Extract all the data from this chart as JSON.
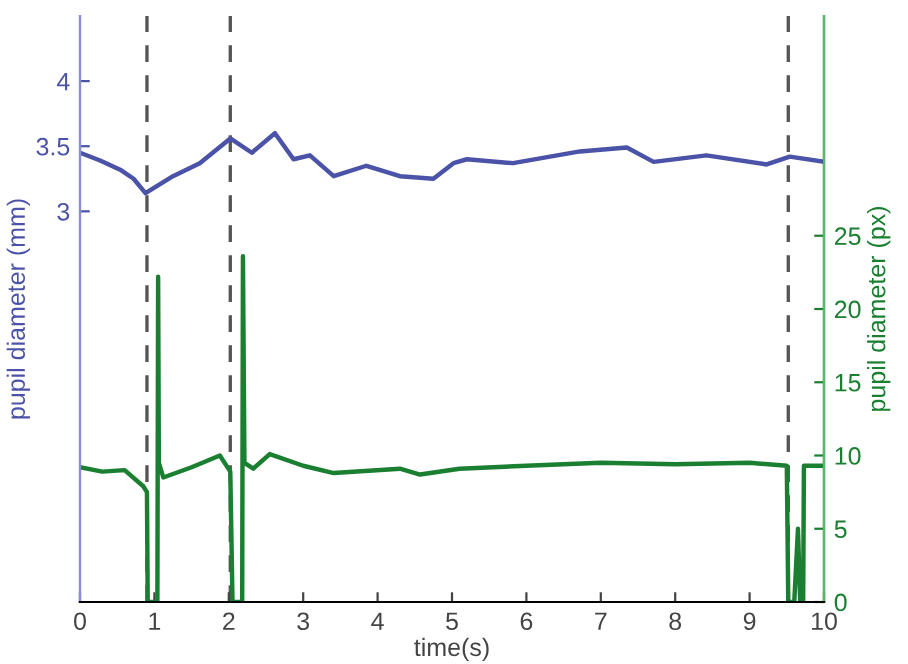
{
  "chart_data": {
    "type": "line",
    "xlabel": "time(s)",
    "ylabel": "pupil diameter (mm)",
    "y2label": "pupil diameter (px)",
    "xlim": [
      0,
      10
    ],
    "xticks": [
      0,
      1,
      2,
      3,
      4,
      5,
      6,
      7,
      8,
      9,
      10
    ],
    "ylim": [
      0,
      4.5
    ],
    "yticks": [
      3,
      3.5,
      4
    ],
    "y2lim": [
      0,
      40
    ],
    "y2ticks": [
      0,
      5,
      10,
      15,
      20,
      25
    ],
    "grid": false,
    "marker": "none",
    "line_style": "solid",
    "series": [
      {
        "color": "#4b53a8",
        "x": [
          0,
          0.27,
          0.54,
          0.72,
          0.88,
          1.25,
          1.61,
          2.02,
          2.31,
          2.62,
          2.87,
          3.09,
          3.41,
          3.85,
          4.3,
          4.75,
          5.02,
          5.2,
          5.82,
          6.72,
          7.35,
          7.71,
          8.42,
          9.23,
          9.54,
          10
        ],
        "values": [
          3.45,
          3.39,
          3.32,
          3.25,
          3.14,
          3.27,
          3.37,
          3.56,
          3.45,
          3.6,
          3.4,
          3.43,
          3.27,
          3.35,
          3.27,
          3.25,
          3.37,
          3.4,
          3.37,
          3.46,
          3.49,
          3.38,
          3.43,
          3.36,
          3.42,
          3.38
        ]
      },
      {
        "color": "#1b7f32",
        "axis": "y2",
        "x": [
          0,
          0.3,
          0.6,
          0.85,
          0.9,
          0.91,
          1.0,
          1.04,
          1.05,
          1.06,
          1.12,
          1.5,
          1.88,
          2.02,
          2.05,
          2.15,
          2.18,
          2.19,
          2.21,
          2.33,
          2.55,
          3.0,
          3.41,
          4.3,
          4.57,
          5.1,
          6.0,
          7.0,
          8.0,
          9.0,
          9.5,
          9.52,
          9.6,
          9.65,
          9.68,
          9.72,
          9.73,
          10
        ],
        "values": [
          9.2,
          8.9,
          9.0,
          7.9,
          7.5,
          0,
          0,
          0,
          22.2,
          9.5,
          8.5,
          9.2,
          10.0,
          8.9,
          0,
          0,
          0,
          23.6,
          9.5,
          9.1,
          10.1,
          9.3,
          8.8,
          9.1,
          8.7,
          9.1,
          9.3,
          9.5,
          9.4,
          9.5,
          9.3,
          0,
          0,
          5,
          0,
          0,
          9.3,
          9.3
        ]
      }
    ],
    "ref_lines": [
      {
        "axis": "x",
        "value": 0.9,
        "color": "#555555",
        "line_style": "dashed"
      },
      {
        "axis": "x",
        "value": 2.02,
        "color": "#555555",
        "line_style": "dashed"
      },
      {
        "axis": "x",
        "value": 9.52,
        "color": "#555555",
        "line_style": "dashed"
      }
    ]
  }
}
